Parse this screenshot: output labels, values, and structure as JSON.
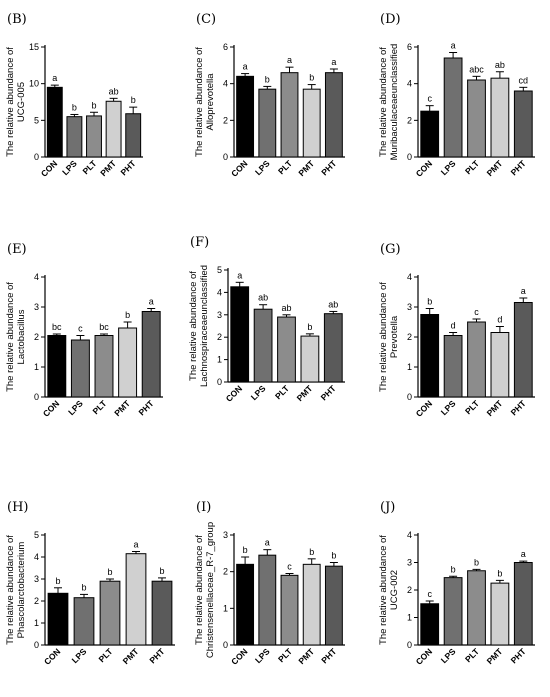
{
  "chart_data": [
    {
      "type": "bar",
      "panel_label": "(B)",
      "ylabel_line1": "The relative abundance of",
      "ylabel_line2": "UCG-005",
      "categories": [
        "CON",
        "LPS",
        "PLT",
        "PMT",
        "PHT"
      ],
      "values": [
        9.5,
        5.5,
        5.6,
        7.6,
        5.9
      ],
      "errors": [
        0.3,
        0.3,
        0.5,
        0.4,
        0.9
      ],
      "letters": [
        "a",
        "b",
        "b",
        "ab",
        "b"
      ],
      "ylim": [
        0,
        15
      ],
      "yticks": [
        0,
        5,
        10,
        15
      ],
      "colors": [
        "#000000",
        "#707070",
        "#8c8c8c",
        "#d0d0d0",
        "#5a5a5a"
      ]
    },
    {
      "type": "bar",
      "panel_label": "(C)",
      "ylabel_line1": "The relative abundance of",
      "ylabel_line2": "Alloprevotella",
      "categories": [
        "CON",
        "LPS",
        "PLT",
        "PMT",
        "PHT"
      ],
      "values": [
        4.4,
        3.7,
        4.6,
        3.7,
        4.6
      ],
      "errors": [
        0.15,
        0.15,
        0.3,
        0.25,
        0.2
      ],
      "letters": [
        "a",
        "b",
        "a",
        "b",
        "a"
      ],
      "ylim": [
        0,
        6
      ],
      "yticks": [
        0,
        2,
        4,
        6
      ],
      "colors": [
        "#000000",
        "#707070",
        "#8c8c8c",
        "#d0d0d0",
        "#5a5a5a"
      ]
    },
    {
      "type": "bar",
      "panel_label": "(D)",
      "ylabel_line1": "The relative abundance of",
      "ylabel_line2": "Muribaculaceaeunclassified",
      "categories": [
        "CON",
        "LPS",
        "PLT",
        "PMT",
        "PHT"
      ],
      "values": [
        2.5,
        5.4,
        4.2,
        4.3,
        3.6
      ],
      "errors": [
        0.3,
        0.3,
        0.2,
        0.35,
        0.2
      ],
      "letters": [
        "c",
        "a",
        "abc",
        "ab",
        "cd"
      ],
      "ylim": [
        0,
        6
      ],
      "yticks": [
        0,
        2,
        4,
        6
      ],
      "colors": [
        "#000000",
        "#707070",
        "#8c8c8c",
        "#d0d0d0",
        "#5a5a5a"
      ]
    },
    {
      "type": "bar",
      "panel_label": "(E)",
      "ylabel_line1": "The relative abundance of",
      "ylabel_line2": "Lactobacillus",
      "categories": [
        "CON",
        "LPS",
        "PLT",
        "PMT",
        "PHT"
      ],
      "values": [
        2.05,
        1.9,
        2.05,
        2.3,
        2.85
      ],
      "errors": [
        0.05,
        0.15,
        0.05,
        0.2,
        0.1
      ],
      "letters": [
        "bc",
        "c",
        "bc",
        "b",
        "a"
      ],
      "ylim": [
        0,
        4
      ],
      "yticks": [
        0,
        1,
        2,
        3,
        4
      ],
      "colors": [
        "#000000",
        "#707070",
        "#8c8c8c",
        "#d0d0d0",
        "#5a5a5a"
      ]
    },
    {
      "type": "bar",
      "panel_label": "(F)",
      "ylabel_line1": "The relative abundance of",
      "ylabel_line2": "Lachnospiraceaeunclassified",
      "categories": [
        "CON",
        "LPS",
        "PLT",
        "PMT",
        "PHT"
      ],
      "values": [
        4.25,
        3.25,
        2.9,
        2.05,
        3.05
      ],
      "errors": [
        0.2,
        0.2,
        0.1,
        0.1,
        0.1
      ],
      "letters": [
        "a",
        "ab",
        "ab",
        "b",
        "ab"
      ],
      "ylim": [
        0,
        5
      ],
      "yticks": [
        0,
        1,
        2,
        3,
        4,
        5
      ],
      "colors": [
        "#000000",
        "#707070",
        "#8c8c8c",
        "#d0d0d0",
        "#5a5a5a"
      ]
    },
    {
      "type": "bar",
      "panel_label": "(G)",
      "ylabel_line1": "The relative abundance of",
      "ylabel_line2": "Prevotella",
      "categories": [
        "CON",
        "LPS",
        "PLT",
        "PMT",
        "PHT"
      ],
      "values": [
        2.75,
        2.05,
        2.5,
        2.15,
        3.15
      ],
      "errors": [
        0.2,
        0.1,
        0.1,
        0.2,
        0.15
      ],
      "letters": [
        "b",
        "d",
        "c",
        "d",
        "a"
      ],
      "ylim": [
        0,
        4
      ],
      "yticks": [
        0,
        1,
        2,
        3,
        4
      ],
      "colors": [
        "#000000",
        "#707070",
        "#8c8c8c",
        "#d0d0d0",
        "#5a5a5a"
      ]
    },
    {
      "type": "bar",
      "panel_label": "(H)",
      "ylabel_line1": "The relative abundance of",
      "ylabel_line2": "Phascolarctobacterium",
      "categories": [
        "CON",
        "LPS",
        "PLT",
        "PMT",
        "PHT"
      ],
      "values": [
        2.35,
        2.15,
        2.9,
        4.15,
        2.9
      ],
      "errors": [
        0.25,
        0.15,
        0.1,
        0.1,
        0.15
      ],
      "letters": [
        "b",
        "b",
        "b",
        "a",
        "b"
      ],
      "ylim": [
        0,
        5
      ],
      "yticks": [
        0,
        1,
        2,
        3,
        4,
        5
      ],
      "colors": [
        "#000000",
        "#707070",
        "#8c8c8c",
        "#d0d0d0",
        "#5a5a5a"
      ]
    },
    {
      "type": "bar",
      "panel_label": "(I)",
      "ylabel_line1": "The relative abundance of",
      "ylabel_line2": "Christensenellaceae_R-7_group",
      "categories": [
        "CON",
        "LPS",
        "PLT",
        "PMT",
        "PHT"
      ],
      "values": [
        2.2,
        2.45,
        1.9,
        2.2,
        2.15
      ],
      "errors": [
        0.2,
        0.15,
        0.05,
        0.15,
        0.1
      ],
      "letters": [
        "b",
        "a",
        "c",
        "b",
        "b"
      ],
      "ylim": [
        0,
        3
      ],
      "yticks": [
        0,
        1,
        2,
        3
      ],
      "colors": [
        "#000000",
        "#707070",
        "#8c8c8c",
        "#d0d0d0",
        "#5a5a5a"
      ]
    },
    {
      "type": "bar",
      "panel_label": "(J)",
      "ylabel_line1": "The relative abundance of",
      "ylabel_line2": "UCG-002",
      "categories": [
        "CON",
        "LPS",
        "PLT",
        "PMT",
        "PHT"
      ],
      "values": [
        1.5,
        2.45,
        2.7,
        2.25,
        3.0
      ],
      "errors": [
        0.1,
        0.05,
        0.05,
        0.1,
        0.05
      ],
      "letters": [
        "c",
        "b",
        "b",
        "b",
        "a"
      ],
      "ylim": [
        0,
        4
      ],
      "yticks": [
        0,
        1,
        2,
        3,
        4
      ],
      "colors": [
        "#000000",
        "#707070",
        "#8c8c8c",
        "#d0d0d0",
        "#5a5a5a"
      ]
    }
  ]
}
